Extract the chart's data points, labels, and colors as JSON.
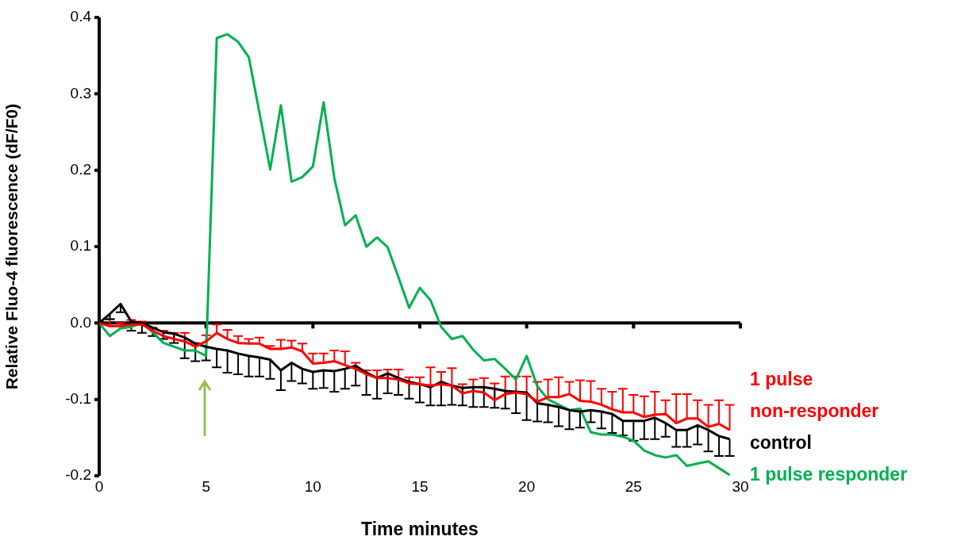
{
  "chart_data": {
    "type": "line",
    "xlabel": "Time minutes",
    "ylabel": "Relative Fluo-4 fluorescence (dF/F0)",
    "x": [
      0,
      0.5,
      1,
      1.5,
      2,
      2.5,
      3,
      3.5,
      4,
      4.5,
      5,
      5.5,
      6,
      6.5,
      7,
      7.5,
      8,
      8.5,
      9,
      9.5,
      10,
      10.5,
      11,
      11.5,
      12,
      12.5,
      13,
      13.5,
      14,
      14.5,
      15,
      15.5,
      16,
      16.5,
      17,
      17.5,
      18,
      18.5,
      19,
      19.5,
      20,
      20.5,
      21,
      21.5,
      22,
      22.5,
      23,
      23.5,
      24,
      24.5,
      25,
      25.5,
      26,
      26.5,
      27,
      27.5,
      28,
      28.5,
      29,
      29.5
    ],
    "series": [
      {
        "name": "1 pulse non-responder",
        "color": "#ff0000",
        "values": [
          0,
          -0.004,
          -0.004,
          -0.002,
          -0.002,
          -0.01,
          -0.017,
          -0.021,
          -0.024,
          -0.031,
          -0.024,
          -0.013,
          -0.021,
          -0.026,
          -0.027,
          -0.027,
          -0.034,
          -0.034,
          -0.032,
          -0.037,
          -0.053,
          -0.052,
          -0.05,
          -0.055,
          -0.06,
          -0.067,
          -0.072,
          -0.072,
          -0.074,
          -0.079,
          -0.08,
          -0.082,
          -0.08,
          -0.082,
          -0.092,
          -0.089,
          -0.091,
          -0.101,
          -0.093,
          -0.091,
          -0.093,
          -0.103,
          -0.097,
          -0.097,
          -0.093,
          -0.102,
          -0.103,
          -0.107,
          -0.113,
          -0.117,
          -0.117,
          -0.123,
          -0.12,
          -0.119,
          -0.131,
          -0.125,
          -0.125,
          -0.136,
          -0.132,
          -0.14
        ],
        "errors": [
          null,
          [
            -0.004,
            0.005
          ],
          [
            -0.004,
            0.0
          ],
          [
            -0.002,
            0.004
          ],
          [
            -0.002,
            0.002
          ],
          [
            -0.01,
            -0.006
          ],
          [
            -0.017,
            -0.01
          ],
          [
            -0.021,
            -0.013
          ],
          [
            -0.024,
            -0.013
          ],
          [
            -0.031,
            -0.026
          ],
          [
            -0.024,
            -0.016
          ],
          [
            -0.013,
            -0.002
          ],
          [
            -0.021,
            -0.009
          ],
          [
            -0.026,
            -0.017
          ],
          [
            -0.027,
            -0.021
          ],
          [
            -0.027,
            -0.019
          ],
          [
            -0.034,
            -0.03
          ],
          [
            -0.034,
            -0.022
          ],
          [
            -0.032,
            -0.023
          ],
          [
            -0.037,
            -0.027
          ],
          [
            -0.053,
            -0.04
          ],
          [
            -0.052,
            -0.04
          ],
          [
            -0.05,
            -0.036
          ],
          [
            -0.055,
            -0.037
          ],
          [
            -0.06,
            -0.052
          ],
          [
            -0.067,
            -0.062
          ],
          [
            -0.072,
            -0.062
          ],
          [
            -0.072,
            -0.061
          ],
          [
            -0.074,
            -0.061
          ],
          [
            -0.079,
            -0.071
          ],
          [
            -0.08,
            -0.071
          ],
          [
            -0.082,
            -0.058
          ],
          [
            -0.08,
            -0.064
          ],
          [
            -0.082,
            -0.059
          ],
          [
            -0.092,
            -0.08
          ],
          [
            -0.089,
            -0.074
          ],
          [
            -0.091,
            -0.072
          ],
          [
            -0.101,
            -0.079
          ],
          [
            -0.093,
            -0.07
          ],
          [
            -0.091,
            -0.07
          ],
          [
            -0.093,
            -0.07
          ],
          [
            -0.103,
            -0.077
          ],
          [
            -0.097,
            -0.074
          ],
          [
            -0.097,
            -0.071
          ],
          [
            -0.093,
            -0.077
          ],
          [
            -0.102,
            -0.075
          ],
          [
            -0.103,
            -0.076
          ],
          [
            -0.107,
            -0.086
          ],
          [
            -0.113,
            -0.09
          ],
          [
            -0.117,
            -0.086
          ],
          [
            -0.117,
            -0.094
          ],
          [
            -0.123,
            -0.096
          ],
          [
            -0.12,
            -0.09
          ],
          [
            -0.119,
            -0.101
          ],
          [
            -0.131,
            -0.093
          ],
          [
            -0.125,
            -0.093
          ],
          [
            -0.125,
            -0.101
          ],
          [
            -0.136,
            -0.107
          ],
          [
            -0.132,
            -0.101
          ],
          [
            -0.14,
            -0.107
          ]
        ]
      },
      {
        "name": "control",
        "color": "#000000",
        "values": [
          0,
          0.012,
          0.025,
          0.002,
          0.0,
          -0.006,
          -0.012,
          -0.014,
          -0.019,
          -0.027,
          -0.031,
          -0.034,
          -0.036,
          -0.04,
          -0.043,
          -0.045,
          -0.048,
          -0.062,
          -0.052,
          -0.06,
          -0.064,
          -0.062,
          -0.063,
          -0.06,
          -0.056,
          -0.065,
          -0.072,
          -0.066,
          -0.072,
          -0.077,
          -0.08,
          -0.084,
          -0.077,
          -0.082,
          -0.085,
          -0.084,
          -0.084,
          -0.086,
          -0.089,
          -0.09,
          -0.091,
          -0.105,
          -0.107,
          -0.11,
          -0.114,
          -0.116,
          -0.114,
          -0.116,
          -0.119,
          -0.128,
          -0.128,
          -0.128,
          -0.124,
          -0.131,
          -0.14,
          -0.14,
          -0.134,
          -0.14,
          -0.148,
          -0.152
        ],
        "errors": [
          null,
          [
            0.005,
            0.012
          ],
          [
            0.014,
            0.025
          ],
          [
            -0.01,
            0.002
          ],
          [
            -0.013,
            0.0
          ],
          [
            -0.017,
            -0.006
          ],
          [
            -0.021,
            -0.012
          ],
          [
            -0.026,
            -0.014
          ],
          [
            -0.046,
            -0.019
          ],
          [
            -0.05,
            -0.027
          ],
          [
            -0.049,
            -0.031
          ],
          [
            -0.058,
            -0.034
          ],
          [
            -0.065,
            -0.036
          ],
          [
            -0.067,
            -0.04
          ],
          [
            -0.07,
            -0.043
          ],
          [
            -0.07,
            -0.045
          ],
          [
            -0.073,
            -0.048
          ],
          [
            -0.088,
            -0.062
          ],
          [
            -0.076,
            -0.052
          ],
          [
            -0.079,
            -0.06
          ],
          [
            -0.086,
            -0.064
          ],
          [
            -0.085,
            -0.062
          ],
          [
            -0.09,
            -0.063
          ],
          [
            -0.086,
            -0.06
          ],
          [
            -0.082,
            -0.056
          ],
          [
            -0.094,
            -0.065
          ],
          [
            -0.099,
            -0.072
          ],
          [
            -0.092,
            -0.066
          ],
          [
            -0.094,
            -0.072
          ],
          [
            -0.099,
            -0.077
          ],
          [
            -0.104,
            -0.08
          ],
          [
            -0.108,
            -0.084
          ],
          [
            -0.108,
            -0.077
          ],
          [
            -0.107,
            -0.082
          ],
          [
            -0.108,
            -0.085
          ],
          [
            -0.11,
            -0.084
          ],
          [
            -0.11,
            -0.084
          ],
          [
            -0.111,
            -0.086
          ],
          [
            -0.112,
            -0.089
          ],
          [
            -0.118,
            -0.09
          ],
          [
            -0.127,
            -0.091
          ],
          [
            -0.129,
            -0.105
          ],
          [
            -0.13,
            -0.107
          ],
          [
            -0.135,
            -0.11
          ],
          [
            -0.139,
            -0.114
          ],
          [
            -0.137,
            -0.116
          ],
          [
            -0.13,
            -0.114
          ],
          [
            -0.138,
            -0.116
          ],
          [
            -0.144,
            -0.119
          ],
          [
            -0.147,
            -0.128
          ],
          [
            -0.154,
            -0.128
          ],
          [
            -0.152,
            -0.128
          ],
          [
            -0.152,
            -0.124
          ],
          [
            -0.149,
            -0.131
          ],
          [
            -0.162,
            -0.14
          ],
          [
            -0.162,
            -0.14
          ],
          [
            -0.159,
            -0.134
          ],
          [
            -0.168,
            -0.14
          ],
          [
            -0.174,
            -0.148
          ],
          [
            -0.174,
            -0.152
          ]
        ]
      },
      {
        "name": "1 pulse responder",
        "color": "#00b050",
        "values": [
          0,
          -0.017,
          -0.007,
          -0.005,
          0.0,
          -0.012,
          -0.026,
          -0.031,
          -0.036,
          -0.036,
          -0.043,
          0.373,
          0.378,
          0.368,
          0.348,
          0.275,
          0.201,
          0.285,
          0.185,
          0.191,
          0.205,
          0.289,
          0.19,
          0.128,
          0.141,
          0.1,
          0.112,
          0.099,
          0.06,
          0.02,
          0.046,
          0.03,
          -0.005,
          -0.021,
          -0.017,
          -0.035,
          -0.049,
          -0.047,
          -0.06,
          -0.074,
          -0.043,
          -0.083,
          -0.1,
          -0.107,
          -0.114,
          -0.112,
          -0.143,
          -0.146,
          -0.146,
          -0.149,
          -0.154,
          -0.167,
          -0.173,
          -0.176,
          -0.173,
          -0.187,
          -0.184,
          -0.181,
          -0.19,
          -0.199
        ]
      }
    ],
    "xlim": [
      0,
      30
    ],
    "xticks": [
      0,
      5,
      10,
      15,
      20,
      25,
      30
    ],
    "ylim": [
      -0.2,
      0.4
    ],
    "yticks": [
      {
        "value": -0.2,
        "label": "-0.2"
      },
      {
        "value": -0.1,
        "label": "-0.1"
      },
      {
        "value": 0,
        "label": "0.0"
      },
      0.1,
      0.2,
      0.3,
      0.4
    ],
    "ref_lines": [
      {
        "axis": "y",
        "value": 0,
        "color": "#000000"
      }
    ],
    "grid": false,
    "legend": "right",
    "marker": "none",
    "line_style": "solid"
  }
}
